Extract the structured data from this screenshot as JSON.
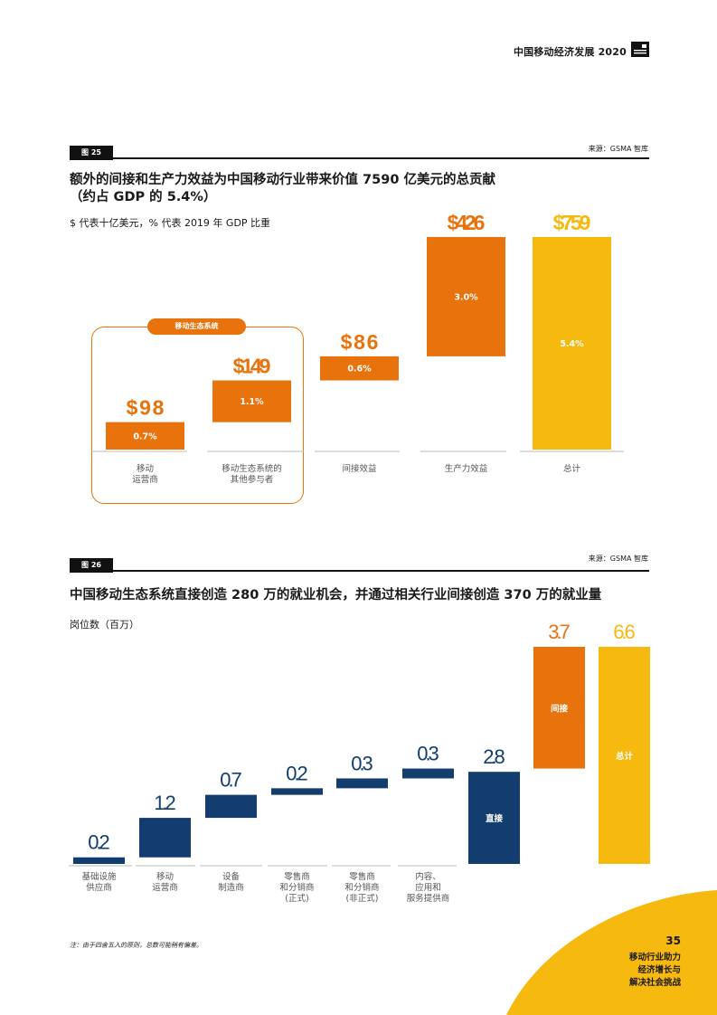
{
  "header": {
    "report_title": "中国移动经济发展 2020"
  },
  "figure25": {
    "tag": "图 25",
    "source": "来源：GSMA 智库",
    "title_line1": "额外的间接和生产力效益为中国移动行业带来价值 7590 亿美元的总贡献",
    "title_line2": "（约占 GDP 的 5.4%）",
    "subtitle": "$ 代表十亿美元，% 代表 2019 年 GDP 比重",
    "ecosystem_tag": "移动生态系统"
  },
  "figure26": {
    "tag": "图 26",
    "source": "来源：GSMA 智库",
    "title": "中国移动生态系统直接创造 280 万的就业机会，并通过相关行业间接创造 370 万的就业量",
    "subtitle": "岗位数（百万）"
  },
  "chart_data": [
    {
      "type": "bar",
      "subtype": "waterfall",
      "title": "额外的间接和生产力效益为中国移动行业带来价值 7590 亿美元的总贡献（约占 GDP 的 5.4%）",
      "categories": [
        [
          "移动",
          "运营商"
        ],
        [
          "移动生态系统的",
          "其他参与者"
        ],
        [
          "间接效益"
        ],
        [
          "生产力效益"
        ],
        [
          "总计"
        ]
      ],
      "values": [
        98,
        149,
        86,
        426,
        759
      ],
      "value_labels": [
        "$98",
        "$149",
        "$86",
        "$426",
        "$759"
      ],
      "gdp_share_labels": [
        "0.7%",
        "1.1%",
        "0.6%",
        "3.0%",
        "5.4%"
      ],
      "is_total": [
        false,
        false,
        false,
        false,
        true
      ],
      "colors": {
        "increment": "#e8720c",
        "total": "#f5b90f",
        "label_increment": "#e8720c",
        "label_total": "#f5b90f"
      },
      "unit": "十亿美元"
    },
    {
      "type": "bar",
      "subtype": "waterfall",
      "title": "中国移动生态系统直接创造 280 万的就业机会，并通过相关行业间接创造 370 万的就业量",
      "ylabel": "岗位数（百万）",
      "categories": [
        [
          "基础设施",
          "供应商"
        ],
        [
          "移动",
          "运营商"
        ],
        [
          "设备",
          "制造商"
        ],
        [
          "零售商",
          "和分销商",
          "(正式)"
        ],
        [
          "零售商",
          "和分销商",
          "(非正式)"
        ],
        [
          "内容、",
          "应用和",
          "服务提供商"
        ],
        [
          ""
        ],
        [
          ""
        ],
        [
          ""
        ]
      ],
      "values": [
        0.2,
        1.2,
        0.7,
        0.2,
        0.3,
        0.3,
        2.8,
        3.7,
        6.6
      ],
      "value_labels": [
        "0.2",
        "1.2",
        "0.7",
        "0.2",
        "0.3",
        "0.3",
        "2.8",
        "3.7",
        "6.6"
      ],
      "bar_text": [
        "",
        "",
        "",
        "",
        "",
        "",
        "直接",
        "间接",
        "总计"
      ],
      "is_total": [
        false,
        false,
        false,
        false,
        false,
        false,
        true,
        false,
        true
      ],
      "colors": [
        "#123d6e",
        "#123d6e",
        "#123d6e",
        "#123d6e",
        "#123d6e",
        "#123d6e",
        "#123d6e",
        "#e8720c",
        "#f5b90f"
      ],
      "unit": "百万"
    }
  ],
  "footer": {
    "note": "注：由于四舍五入的原则，总数可能稍有偏差。",
    "page_number": "35",
    "section_line1": "移动行业助力",
    "section_line2": "经济增长与",
    "section_line3": "解决社会挑战"
  }
}
